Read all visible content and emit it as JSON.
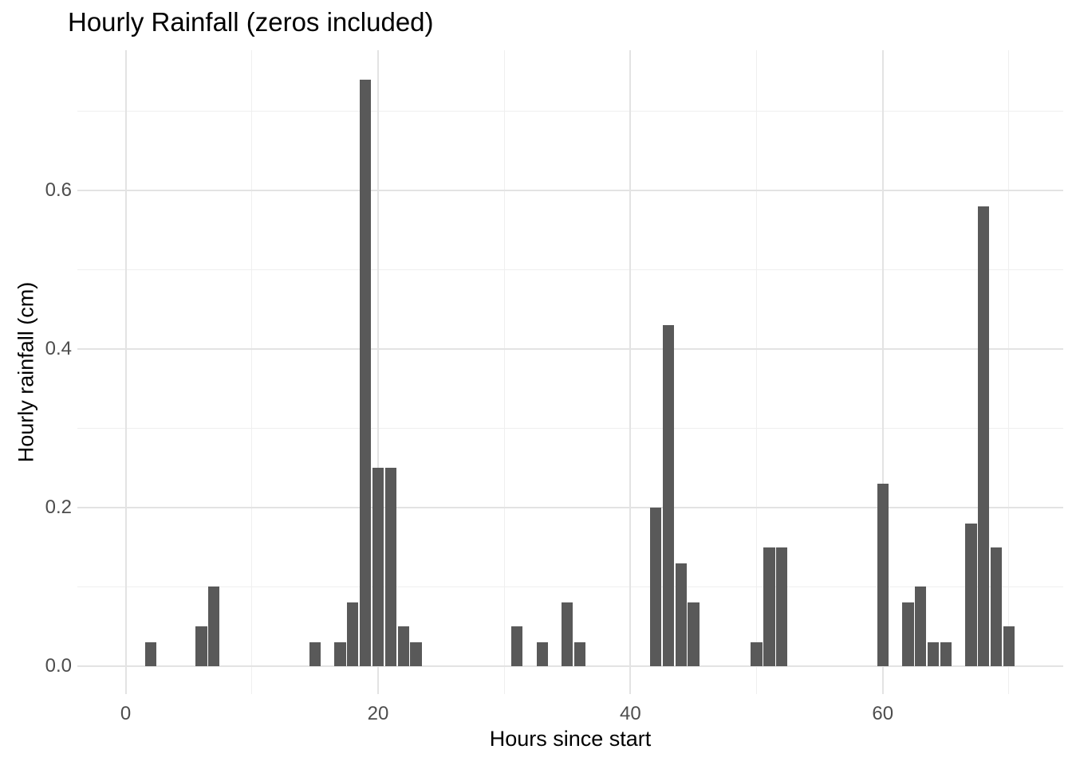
{
  "title": "Hourly Rainfall (zeros included)",
  "chart_data": {
    "type": "bar",
    "title": "Hourly Rainfall (zeros included)",
    "xlabel": "Hours since start",
    "ylabel": "Hourly rainfall (cm)",
    "x": [
      0,
      1,
      2,
      3,
      4,
      5,
      6,
      7,
      8,
      9,
      10,
      11,
      12,
      13,
      14,
      15,
      16,
      17,
      18,
      19,
      20,
      21,
      22,
      23,
      24,
      25,
      26,
      27,
      28,
      29,
      30,
      31,
      32,
      33,
      34,
      35,
      36,
      37,
      38,
      39,
      40,
      41,
      42,
      43,
      44,
      45,
      46,
      47,
      48,
      49,
      50,
      51,
      52,
      53,
      54,
      55,
      56,
      57,
      58,
      59,
      60,
      61,
      62,
      63,
      64,
      65,
      66,
      67,
      68,
      69,
      70,
      71
    ],
    "values": [
      0,
      0,
      0.03,
      0,
      0,
      0,
      0.05,
      0.1,
      0,
      0,
      0,
      0,
      0,
      0,
      0,
      0.03,
      0,
      0.03,
      0.08,
      0.74,
      0.25,
      0.25,
      0.05,
      0.03,
      0,
      0,
      0,
      0,
      0,
      0,
      0,
      0.05,
      0,
      0.03,
      0,
      0.08,
      0.03,
      0,
      0,
      0,
      0,
      0,
      0.2,
      0.43,
      0.13,
      0.08,
      0,
      0,
      0,
      0,
      0.03,
      0.15,
      0.15,
      0,
      0,
      0,
      0,
      0,
      0,
      0,
      0.23,
      0,
      0.08,
      0.1,
      0.03,
      0.03,
      0,
      0.18,
      0.58,
      0.15,
      0.05,
      0
    ],
    "x_ticks_major": [
      0,
      20,
      40,
      60
    ],
    "x_ticks_minor": [
      10,
      30,
      50,
      70
    ],
    "y_ticks_major": [
      0.0,
      0.2,
      0.4,
      0.6
    ],
    "y_ticks_minor": [
      0.1,
      0.3,
      0.5,
      0.7
    ],
    "xlim": [
      -3.83,
      74.3
    ],
    "ylim": [
      -0.0352,
      0.777
    ],
    "bar_width": 0.9,
    "grid": "major+minor horizontal and vertical, light gray on white",
    "legend": "none",
    "colors": {
      "bar": "#595959",
      "grid_major": "#e3e3e3",
      "grid_minor": "#efefef",
      "axis_text": "#4d4d4d",
      "title_text": "#000000",
      "background": "#ffffff"
    }
  }
}
